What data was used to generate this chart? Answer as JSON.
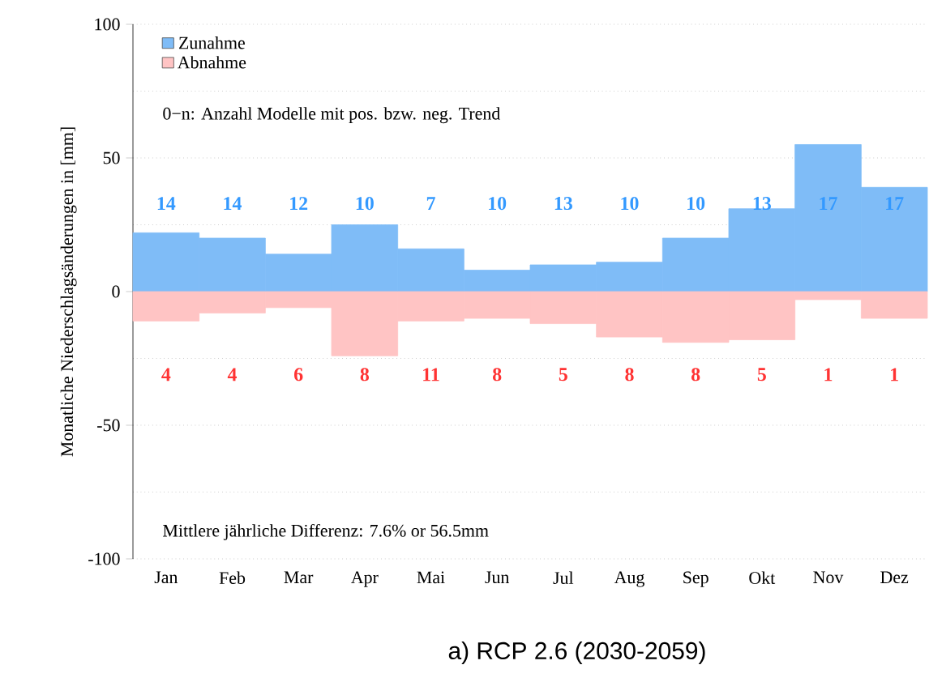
{
  "chart_data": {
    "type": "bar",
    "title": "a) RCP 2.6 (2030-2059)",
    "ylabel": "Monatliche Niederschlagsänderungen in [mm]",
    "categories": [
      "Jan",
      "Feb",
      "Mar",
      "Apr",
      "Mai",
      "Jun",
      "Jul",
      "Aug",
      "Sep",
      "Okt",
      "Nov",
      "Dez"
    ],
    "stacked": true,
    "series": [
      {
        "name": "Zunahme",
        "color": "#7fbcf7",
        "values": [
          22,
          20,
          14,
          25,
          16,
          8,
          10,
          11,
          20,
          31,
          55,
          39
        ]
      },
      {
        "name": "Abnahme",
        "color": "#ffc4c4",
        "values": [
          -11,
          -8,
          -6,
          -24,
          -11,
          -10,
          -12,
          -17,
          -19,
          -18,
          -3,
          -10
        ]
      }
    ],
    "ylim": [
      -100,
      100
    ],
    "yticks": [
      -100,
      -50,
      0,
      50,
      100
    ],
    "grid": "y",
    "legend": "top left",
    "annotations": [
      "0−n: Anzahl Modelle mit pos. bzw. neg. Trend",
      "Mittlere jährliche Differenz: 7.6% or 56.5mm",
      "14",
      "14",
      "12",
      "10",
      "7",
      "10",
      "13",
      "10",
      "10",
      "13",
      "17",
      "17",
      "4",
      "4",
      "6",
      "8",
      "11",
      "8",
      "5",
      "8",
      "8",
      "5",
      "1",
      "1"
    ]
  }
}
